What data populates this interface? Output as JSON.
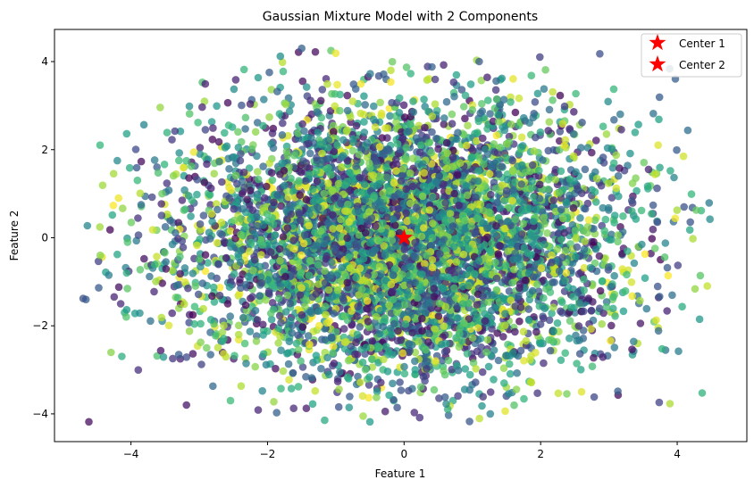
{
  "chart_data": {
    "type": "scatter",
    "title": "Gaussian Mixture Model with 2 Components",
    "xlabel": "Feature 1",
    "ylabel": "Feature 2",
    "xlim": [
      -5.12,
      5.02
    ],
    "ylim": [
      -4.63,
      4.73
    ],
    "xticks": [
      -4,
      -2,
      0,
      2,
      4
    ],
    "yticks": [
      -4,
      -2,
      0,
      2,
      4
    ],
    "grid": false,
    "legend_position": "top-right",
    "colormap": "viridis",
    "point_alpha": 0.75,
    "cloud": {
      "count": 6000,
      "center": [
        0.0,
        0.0
      ],
      "std": [
        1.6,
        1.5
      ],
      "x_range": [
        -4.7,
        4.5
      ],
      "y_range": [
        -4.2,
        4.3
      ]
    },
    "outlier_points": [
      [
        -4.7,
        -1.38
      ],
      [
        -4.45,
        -0.4
      ],
      [
        -4.2,
        -0.38
      ],
      [
        -4.15,
        -1.5
      ],
      [
        -4.05,
        -0.1
      ],
      [
        -4.2,
        1.75
      ],
      [
        -3.85,
        1.73
      ],
      [
        -2.8,
        -3.37
      ],
      [
        -1.5,
        4.3
      ],
      [
        -1.3,
        4.22
      ],
      [
        -0.6,
        -4.05
      ],
      [
        -0.5,
        -4.18
      ],
      [
        0.15,
        -3.97
      ],
      [
        3.65,
        2.82
      ],
      [
        3.9,
        1.52
      ],
      [
        4.1,
        0.7
      ],
      [
        4.48,
        0.42
      ],
      [
        3.63,
        -0.02
      ],
      [
        2.6,
        -3.5
      ],
      [
        1.1,
        4.0
      ]
    ],
    "legend": [
      {
        "label": "Center 1",
        "marker": "star",
        "color": "#ff0000"
      },
      {
        "label": "Center 2",
        "marker": "star",
        "color": "#ff0000"
      }
    ],
    "centers": [
      {
        "name": "Center 1",
        "x": 0.0,
        "y": 0.0,
        "color": "#ff0000"
      },
      {
        "name": "Center 2",
        "x": 0.0,
        "y": 0.0,
        "color": "#ff0000"
      }
    ]
  }
}
